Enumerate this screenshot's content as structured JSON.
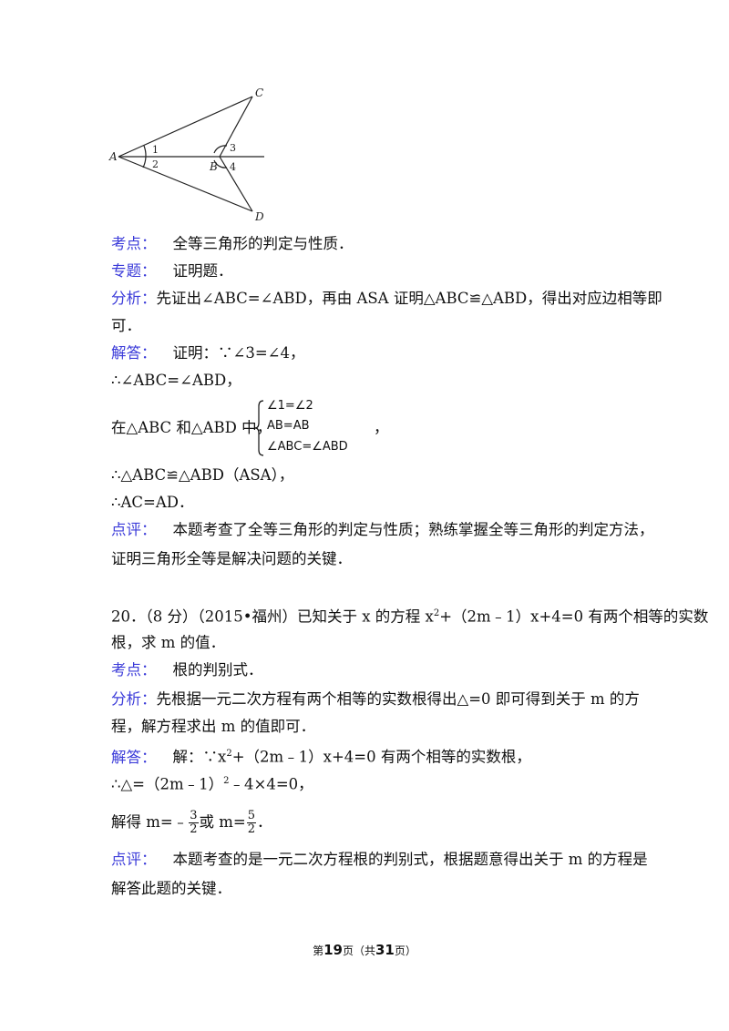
{
  "figure": {
    "label_A": "A",
    "label_B": "B",
    "label_C": "C",
    "label_D": "D",
    "label_1": "1",
    "label_2": "2",
    "label_3": "3",
    "label_4": "4"
  },
  "q19": {
    "kaodian_label": "考点：",
    "kaodian_text": "全等三角形的判定与性质．",
    "zhuanti_label": "专题：",
    "zhuanti_text": "证明题．",
    "fenxi_label": "分析：",
    "fenxi_line1": "先证出∠ABC=∠ABD，再由 ASA 证明△ABC≌△ABD，得出对应边相等即",
    "fenxi_line2": "可．",
    "jieda_label": "解答：",
    "jieda_line1": "证明：∵∠3=∠4，",
    "jieda_line2": "∴∠ABC=∠ABD，",
    "jieda_line3_prefix": "在△ABC 和△ABD 中，",
    "system_row1": "∠1=∠2",
    "system_row2": "AB=AB",
    "system_row3": "∠ABC=∠ABD",
    "system_suffix": "，",
    "jieda_line4": "∴△ABC≌△ABD（ASA），",
    "jieda_line5": "∴AC=AD．",
    "dianping_label": "点评：",
    "dianping_line1": "本题考查了全等三角形的判定与性质；熟练掌握全等三角形的判定方法，",
    "dianping_line2": "证明三角形全等是解决问题的关键．"
  },
  "q20": {
    "stem_line1_a": "20．（8 分）（2015•福州）已知关于 x 的方程 x",
    "stem_sup": "2",
    "stem_line1_b": "+（2m﹣1）x+4=0 有两个相等的实数",
    "stem_line2": "根，求 m 的值．",
    "kaodian_label": "考点：",
    "kaodian_text": "根的判别式．",
    "fenxi_label": "分析：",
    "fenxi_line1": "先根据一元二次方程有两个相等的实数根得出△=0 即可得到关于 m 的方",
    "fenxi_line2": "程，解方程求出 m 的值即可．",
    "jieda_label": "解答：",
    "jieda_line1_a": "解：∵x",
    "jieda_sup": "2",
    "jieda_line1_b": "+（2m﹣1）x+4=0 有两个相等的实数根，",
    "jieda_line2": "∴△=（2m﹣1）",
    "jieda_line2_sup": "2",
    "jieda_line2_b": "﹣4×4=0，",
    "jieda_line3_a": "解得 m=﹣",
    "frac1_num": "3",
    "frac1_den": "2",
    "jieda_line3_mid": "或 m=",
    "frac2_num": "5",
    "frac2_den": "2",
    "jieda_line3_end": "．",
    "dianping_label": "点评：",
    "dianping_line1": "本题考查的是一元二次方程根的判别式，根据题意得出关于 m 的方程是",
    "dianping_line2": "解答此题的关键．"
  },
  "footer": {
    "prefix": "第",
    "page": "19",
    "mid": "页（共",
    "total": "31",
    "suffix": "页）"
  }
}
